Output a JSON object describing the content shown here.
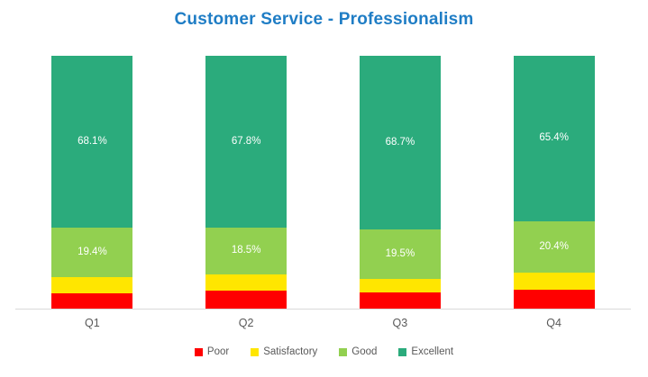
{
  "chart_data": {
    "type": "bar",
    "stacked": true,
    "title": "Customer Service - Professionalism",
    "title_color": "#1f7dc5",
    "categories": [
      "Q1",
      "Q2",
      "Q3",
      "Q4"
    ],
    "series": [
      {
        "name": "Poor",
        "color": "#ff0000",
        "values": [
          6.1,
          7.2,
          6.4,
          7.6
        ],
        "labels_visible": false,
        "data_labels": [
          "",
          "",
          "",
          ""
        ]
      },
      {
        "name": "Satisfactory",
        "color": "#ffe600",
        "values": [
          6.4,
          6.5,
          5.4,
          6.6
        ],
        "labels_visible": false,
        "data_labels": [
          "",
          "",
          "",
          ""
        ]
      },
      {
        "name": "Good",
        "color": "#92d050",
        "values": [
          19.4,
          18.5,
          19.5,
          20.4
        ],
        "labels_visible": true,
        "data_labels": [
          "19.4%",
          "18.5%",
          "19.5%",
          "20.4%"
        ]
      },
      {
        "name": "Excellent",
        "color": "#2bab7c",
        "values": [
          68.1,
          67.8,
          68.7,
          65.4
        ],
        "labels_visible": true,
        "data_labels": [
          "68.1%",
          "67.8%",
          "68.7%",
          "65.4%"
        ]
      }
    ],
    "xlabel": "",
    "ylabel": "",
    "ylim": [
      0,
      100
    ],
    "grid": false,
    "y_axis_visible": false,
    "data_label_color": "#ffffff",
    "axis_text_color": "#595959",
    "axis_line_color": "#d9d9d9",
    "legend": {
      "position": "bottom",
      "entries": [
        "Poor",
        "Satisfactory",
        "Good",
        "Excellent"
      ]
    }
  }
}
